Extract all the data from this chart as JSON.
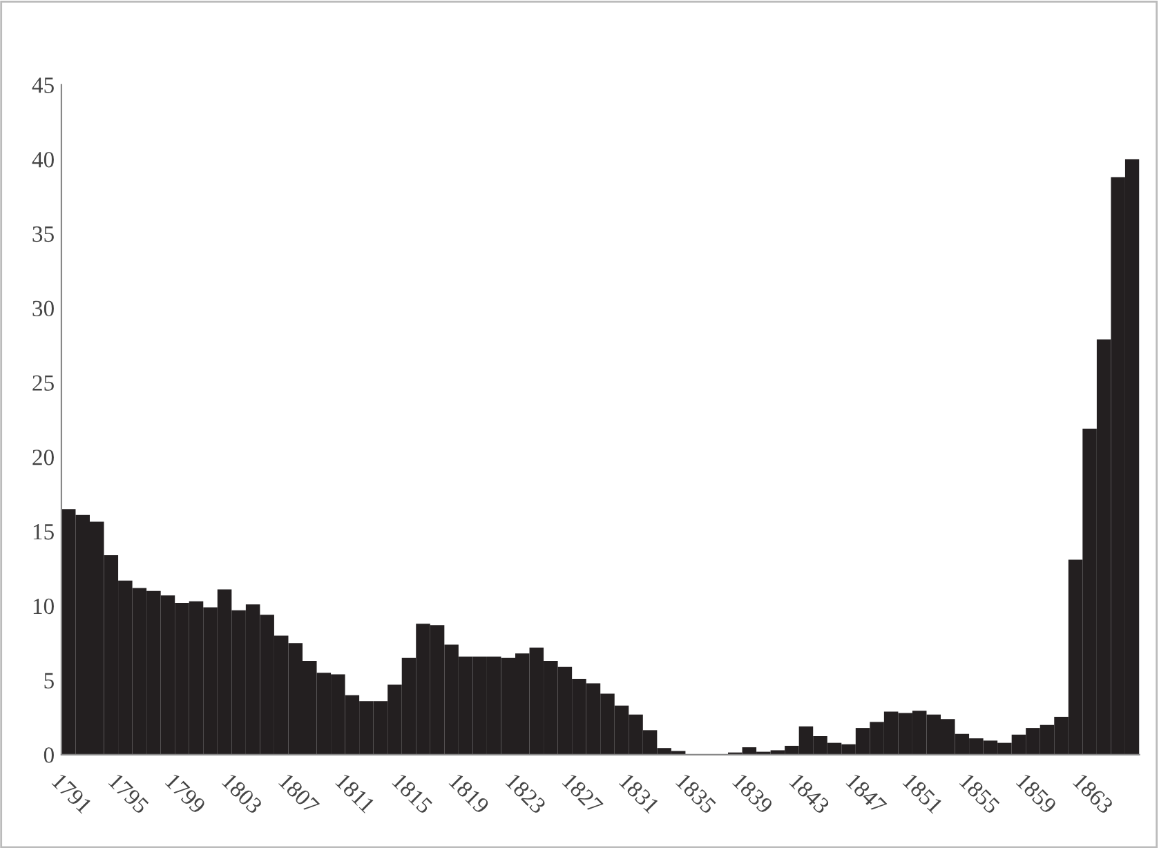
{
  "chart_data": {
    "type": "bar",
    "color": "#231f20",
    "categories": [
      "1791",
      null,
      null,
      null,
      "1795",
      null,
      null,
      null,
      "1799",
      null,
      null,
      null,
      "1803",
      null,
      null,
      null,
      "1807",
      null,
      null,
      null,
      "1811",
      null,
      null,
      null,
      "1815",
      null,
      null,
      null,
      "1819",
      null,
      null,
      null,
      "1823",
      null,
      null,
      null,
      "1827",
      null,
      null,
      null,
      "1831",
      null,
      null,
      null,
      "1835",
      null,
      null,
      null,
      "1839",
      null,
      null,
      null,
      "1843",
      null,
      null,
      null,
      "1847",
      null,
      null,
      null,
      "1851",
      null,
      null,
      null,
      "1855",
      null,
      null,
      null,
      "1859",
      null,
      null,
      null,
      "1863",
      null,
      null,
      null
    ],
    "values": [
      16.5,
      16.1,
      15.65,
      13.4,
      11.7,
      11.2,
      11.0,
      10.7,
      10.2,
      10.3,
      9.9,
      11.1,
      9.7,
      10.1,
      9.4,
      8.0,
      7.5,
      6.3,
      5.5,
      5.4,
      4.0,
      3.6,
      3.6,
      4.7,
      6.5,
      8.8,
      8.7,
      7.4,
      6.6,
      6.6,
      6.6,
      6.5,
      6.8,
      7.2,
      6.3,
      5.9,
      5.1,
      4.8,
      4.1,
      3.3,
      2.7,
      1.65,
      0.45,
      0.25,
      0,
      0,
      0,
      0.15,
      0.5,
      0.2,
      0.3,
      0.6,
      1.9,
      1.25,
      0.8,
      0.7,
      1.8,
      2.2,
      2.9,
      2.8,
      2.95,
      2.7,
      2.4,
      1.4,
      1.1,
      0.95,
      0.8,
      1.35,
      1.8,
      2.0,
      2.55,
      13.1,
      21.9,
      27.9,
      38.8,
      40.0
    ],
    "ylim": [
      0,
      45
    ],
    "yticks": [
      0,
      5,
      10,
      15,
      20,
      25,
      30,
      35,
      40,
      45
    ],
    "grid": false,
    "legend": false
  }
}
